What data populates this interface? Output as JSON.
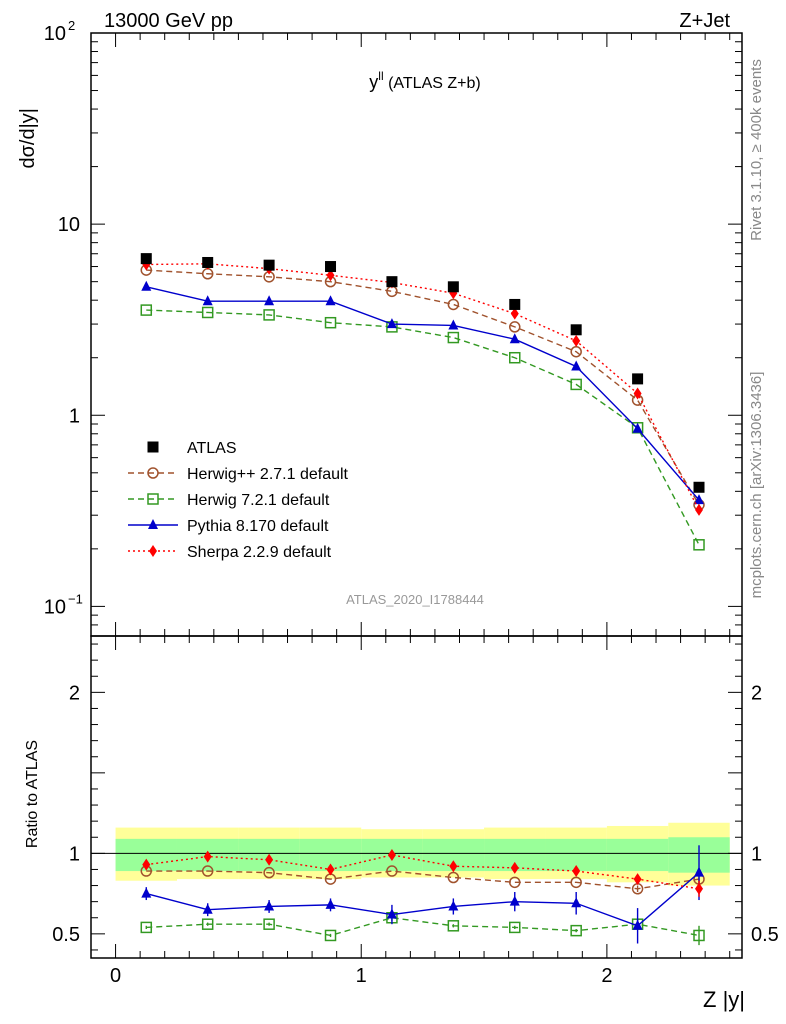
{
  "header": {
    "left": "13000 GeV pp",
    "right": "Z+Jet"
  },
  "side_labels": {
    "rivet": "Rivet 3.1.10, ≥ 400k events",
    "mcplots": "mcplots.cern.ch [arXiv:1306.3436]"
  },
  "chart_data": {
    "type": "scatter",
    "title": "y^ll (ATLAS Z+b)",
    "title_main": "y",
    "title_sup": "ll",
    "title_rest": " (ATLAS Z+b)",
    "analysis_id": "ATLAS_2020_I1788444",
    "xlabel": "Z |y|",
    "ylabel": "dσ/d|y|",
    "ratio_ylabel": "Ratio to ATLAS",
    "xlim": [
      -0.1,
      2.55
    ],
    "ylim": [
      0.07,
      100
    ],
    "yscale": "log",
    "ratio_ylim": [
      0.35,
      2.35
    ],
    "x_ticks": [
      "0",
      "1",
      "2"
    ],
    "y_ticks": [
      "10^-1",
      "1",
      "10",
      "10^2"
    ],
    "ratio_y_ticks": [
      "0.5",
      "1",
      "2"
    ],
    "x": [
      0.125,
      0.375,
      0.625,
      0.875,
      1.125,
      1.375,
      1.625,
      1.875,
      2.125,
      2.375
    ],
    "bin_edges": [
      0,
      0.25,
      0.5,
      0.75,
      1.0,
      1.25,
      1.5,
      1.75,
      2.0,
      2.25,
      2.5
    ],
    "data": {
      "name": "ATLAS",
      "color": "#000000",
      "values": [
        6.6,
        6.3,
        6.1,
        6.0,
        5.0,
        4.7,
        3.8,
        2.8,
        1.55,
        0.42
      ]
    },
    "bands": {
      "inner_color": "#99ff99",
      "outer_color": "#ffff99",
      "inner_lo": [
        0.89,
        0.89,
        0.89,
        0.89,
        0.89,
        0.89,
        0.89,
        0.89,
        0.89,
        0.88
      ],
      "inner_hi": [
        1.09,
        1.09,
        1.09,
        1.09,
        1.09,
        1.09,
        1.09,
        1.09,
        1.09,
        1.1
      ],
      "outer_lo": [
        0.83,
        0.84,
        0.84,
        0.84,
        0.85,
        0.85,
        0.84,
        0.84,
        0.82,
        0.8
      ],
      "outer_hi": [
        1.16,
        1.16,
        1.16,
        1.16,
        1.15,
        1.15,
        1.16,
        1.16,
        1.17,
        1.19
      ]
    },
    "series": [
      {
        "name": "Herwig++ 2.7.1 default",
        "color": "#a0522d",
        "dash": "6,4",
        "marker": "open-circle",
        "values": [
          5.75,
          5.5,
          5.3,
          5.0,
          4.45,
          3.8,
          2.9,
          2.15,
          1.2,
          0.34
        ],
        "ratio": [
          0.89,
          0.89,
          0.88,
          0.84,
          0.89,
          0.85,
          0.82,
          0.82,
          0.78,
          0.84
        ],
        "ratio_err": [
          0,
          0,
          0,
          0,
          0,
          0,
          0,
          0,
          0.02,
          0.04
        ]
      },
      {
        "name": "Herwig 7.2.1 default",
        "color": "#339922",
        "dash": "6,4",
        "marker": "open-square",
        "values": [
          3.55,
          3.45,
          3.35,
          3.05,
          2.9,
          2.55,
          2.0,
          1.45,
          0.86,
          0.21
        ],
        "ratio": [
          0.54,
          0.56,
          0.56,
          0.49,
          0.6,
          0.55,
          0.54,
          0.52,
          0.56,
          0.49
        ],
        "ratio_err": [
          0.01,
          0.01,
          0.01,
          0.01,
          0.02,
          0.01,
          0.01,
          0.01,
          0.03,
          0.06
        ]
      },
      {
        "name": "Pythia 8.170 default",
        "color": "#0000cc",
        "dash": "",
        "marker": "triangle",
        "values": [
          4.7,
          3.95,
          3.95,
          3.95,
          3.0,
          2.95,
          2.5,
          1.8,
          0.85,
          0.36
        ],
        "ratio": [
          0.75,
          0.65,
          0.67,
          0.68,
          0.62,
          0.67,
          0.7,
          0.69,
          0.55,
          0.88
        ],
        "ratio_err": [
          0.04,
          0.04,
          0.04,
          0.04,
          0.06,
          0.05,
          0.06,
          0.07,
          0.11,
          0.17
        ]
      },
      {
        "name": "Sherpa 2.2.9 default",
        "color": "#ff0000",
        "dash": "2,3",
        "marker": "diamond",
        "values": [
          6.15,
          6.2,
          5.85,
          5.4,
          4.95,
          4.35,
          3.4,
          2.45,
          1.3,
          0.32
        ],
        "ratio": [
          0.93,
          0.98,
          0.96,
          0.9,
          0.99,
          0.92,
          0.91,
          0.89,
          0.84,
          0.78
        ],
        "ratio_err": [
          0.01,
          0.01,
          0.01,
          0.02,
          0.01,
          0.01,
          0.01,
          0.01,
          0.02,
          0.05
        ]
      }
    ]
  }
}
